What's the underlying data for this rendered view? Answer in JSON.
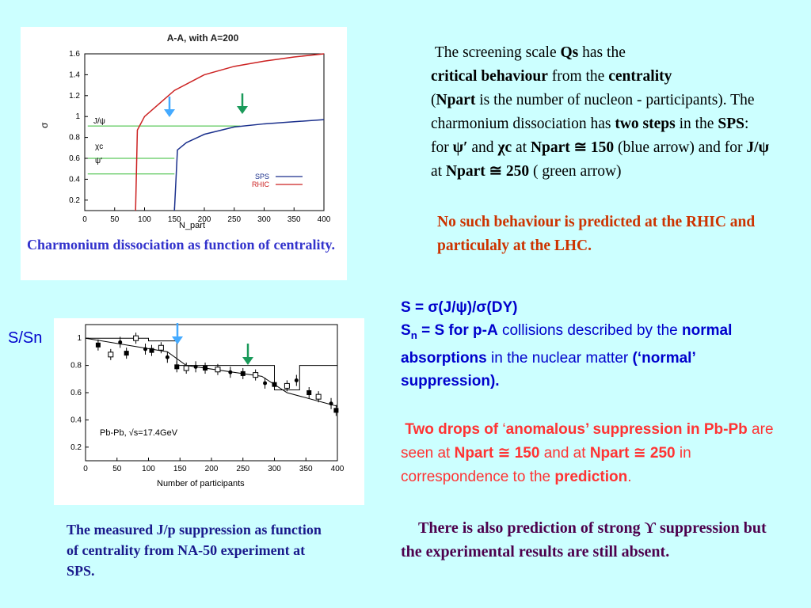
{
  "chart1": {
    "chart_data": {
      "type": "line",
      "title": "A-A, with A=200",
      "xlabel": "N_part",
      "ylabel": "σ",
      "xlim": [
        0,
        400
      ],
      "ylim": [
        0.1,
        1.6
      ],
      "xticks": [
        "0",
        "50",
        "100",
        "150",
        "200",
        "250",
        "300",
        "350",
        "400"
      ],
      "yticks": [
        "0.2",
        "0.4",
        "0.6",
        "0.8",
        "1",
        "1.2",
        "1.4",
        "1.6"
      ],
      "series": [
        {
          "name": "SPS",
          "color": "#1a2f8c",
          "x": [
            150,
            155,
            170,
            200,
            250,
            300,
            350,
            400
          ],
          "y": [
            0.1,
            0.68,
            0.75,
            0.83,
            0.9,
            0.93,
            0.95,
            0.97
          ]
        },
        {
          "name": "RHIC",
          "color": "#cc2222",
          "x": [
            85,
            88,
            100,
            150,
            200,
            250,
            300,
            350,
            400
          ],
          "y": [
            0.1,
            0.87,
            1.0,
            1.25,
            1.4,
            1.48,
            1.53,
            1.57,
            1.6
          ]
        }
      ],
      "annotations": [
        "J/ψ",
        "χc",
        "ψ'"
      ],
      "legend": "bottom-right"
    }
  },
  "caption1": {
    "text": "Charmonium dissociation as function of centrality."
  },
  "paragraph1": {
    "p1": "The screening scale",
    "qs": "Qs",
    "p2": "has the",
    "p3": "critical behaviour",
    "p4": "from the",
    "p5": "centrality",
    "p6": "(",
    "p7": "Npart",
    "p8": "is the number of nucleon - participants). The charmonium dissociation has",
    "p9": "two steps",
    "p10": "in the",
    "p11": "SPS",
    "p12": ":",
    "p13": "for",
    "p14": "ψ′",
    "p15": "and",
    "p16": "χc",
    "p17": "at",
    "p18": "Npart ≅ 150",
    "p19": "(blue arrow) and for",
    "p20": "J/ψ",
    "p21": "at",
    "p22": "Npart ≅ 250",
    "p23": "( green arrow)"
  },
  "paragraph2": {
    "text": "No such behaviour is predicted at the RHIC  and particulaly at the LHC."
  },
  "ratio_label": {
    "text": "S/Sn"
  },
  "chart2": {
    "chart_data": {
      "type": "scatter",
      "xlabel": "Number of participants",
      "ylabel": "",
      "xlim": [
        0,
        400
      ],
      "ylim": [
        0.1,
        1.1
      ],
      "xticks": [
        "0",
        "50",
        "100",
        "150",
        "200",
        "250",
        "300",
        "350",
        "400"
      ],
      "yticks": [
        "0.2",
        "0.4",
        "0.6",
        "0.8",
        "1"
      ],
      "annotation": "Pb-Pb, √s=17.4GeV",
      "points": [
        {
          "x": 20,
          "y": 0.95
        },
        {
          "x": 40,
          "y": 0.88
        },
        {
          "x": 55,
          "y": 0.97
        },
        {
          "x": 65,
          "y": 0.89
        },
        {
          "x": 80,
          "y": 1.0
        },
        {
          "x": 95,
          "y": 0.92
        },
        {
          "x": 105,
          "y": 0.91
        },
        {
          "x": 120,
          "y": 0.93
        },
        {
          "x": 130,
          "y": 0.86
        },
        {
          "x": 145,
          "y": 0.79
        },
        {
          "x": 160,
          "y": 0.78
        },
        {
          "x": 175,
          "y": 0.79
        },
        {
          "x": 190,
          "y": 0.78
        },
        {
          "x": 210,
          "y": 0.77
        },
        {
          "x": 230,
          "y": 0.75
        },
        {
          "x": 250,
          "y": 0.74
        },
        {
          "x": 270,
          "y": 0.73
        },
        {
          "x": 285,
          "y": 0.67
        },
        {
          "x": 300,
          "y": 0.66
        },
        {
          "x": 320,
          "y": 0.65
        },
        {
          "x": 335,
          "y": 0.69
        },
        {
          "x": 355,
          "y": 0.6
        },
        {
          "x": 370,
          "y": 0.57
        },
        {
          "x": 390,
          "y": 0.52
        },
        {
          "x": 398,
          "y": 0.47
        }
      ]
    }
  },
  "caption2": {
    "text": "The measured J/p suppression as function of centrality from NA-50 experiment at SPS."
  },
  "paragraph3": {
    "s1": "S = σ(J/ψ)/σ(DY)",
    "s2": "S",
    "s3": "n",
    "s4": " = S",
    "s5": "for p-A",
    "s6": "collisions described by the",
    "s7": "normal absorptions",
    "s8": "in the nuclear matter",
    "s9": "(‘normal’ suppression)."
  },
  "paragraph4": {
    "a1": "Two drops of",
    "a2": "‘",
    "a3": "anomalous’ suppression in Pb-Pb",
    "a4": "are seen at",
    "a5": "Npart",
    "a6": " ≅ 150",
    "a7": "and at",
    "a8": "Npart",
    "a9": " ≅ 250",
    "a10": "in correspondence to the",
    "a11": "prediction",
    "a12": "."
  },
  "paragraph5": {
    "text": "There is  also prediction of strong ϒ suppression but the experimental results are still absent."
  }
}
